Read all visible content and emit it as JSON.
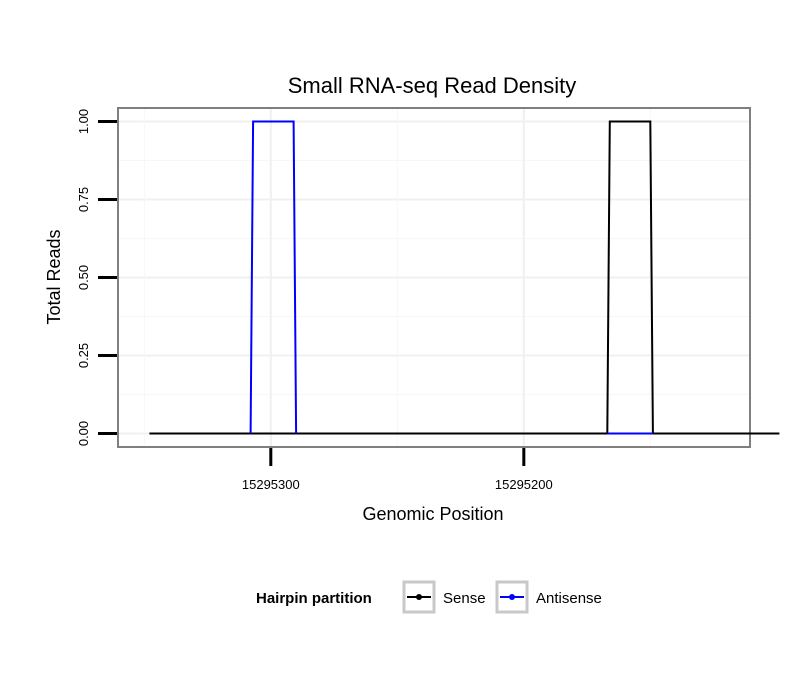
{
  "chart_data": {
    "type": "line",
    "title": "Small RNA-seq Read Density",
    "xlabel": "Genomic Position",
    "ylabel": "Total Reads",
    "x_reversed": true,
    "xlim": [
      15295360,
      15295111
    ],
    "ylim": [
      -0.04,
      1.04
    ],
    "x_ticks": [
      15295300,
      15295200
    ],
    "x_tick_labels": [
      "15295300",
      "15295200"
    ],
    "y_ticks": [
      0,
      0.25,
      0.5,
      0.75,
      1.0
    ],
    "y_tick_labels": [
      "0.00",
      "0.25",
      "0.50",
      "0.75",
      "1.00"
    ],
    "grid": true,
    "legend": {
      "title": "Hairpin partition",
      "placement": "bottom",
      "entries": [
        "Sense",
        "Antisense"
      ]
    },
    "series": [
      {
        "name": "Sense",
        "color": "#000000",
        "x": [
          15295348,
          15295167,
          15295166,
          15295150,
          15295149,
          15295099
        ],
        "y": [
          0,
          0,
          1,
          1,
          0,
          0
        ]
      },
      {
        "name": "Antisense",
        "color": "#0000ff",
        "x": [
          15295167,
          15295149
        ],
        "y": [
          0,
          0
        ]
      },
      {
        "name": "Antisense",
        "color": "#0000ff",
        "x": [
          15295308,
          15295307,
          15295291,
          15295290
        ],
        "y": [
          0,
          1,
          1,
          0
        ]
      }
    ]
  }
}
